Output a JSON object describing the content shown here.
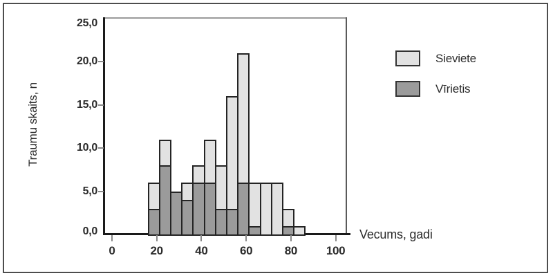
{
  "figure": {
    "background": "#ffffff",
    "border_color": "#4d4d4d"
  },
  "axes": {
    "y_title": "Traumu skaits, n",
    "x_title": "Vecums, gadi"
  },
  "legend": {
    "items": [
      {
        "label": "Sieviete",
        "color": "#e2e2e2"
      },
      {
        "label": "Vīrietis",
        "color": "#9b9b9b"
      }
    ]
  },
  "chart_data": {
    "type": "bar",
    "stacked": true,
    "title": "",
    "xlabel": "Vecums, gadi",
    "ylabel": "Traumu skaits, n",
    "xlim": [
      -4,
      106
    ],
    "ylim": [
      0,
      25
    ],
    "x_ticks": [
      0,
      20,
      40,
      60,
      80,
      100
    ],
    "x_tick_labels": [
      "0",
      "20",
      "40",
      "60",
      "80",
      "100"
    ],
    "y_ticks": [
      0,
      5,
      10,
      15,
      20,
      25
    ],
    "y_tick_labels": [
      "0,0",
      "5,0",
      "10,0",
      "15,0",
      "20,0",
      "25,0"
    ],
    "grid": false,
    "legend_position": "right",
    "bin_width": 5,
    "bin_starts": [
      16,
      21,
      26,
      31,
      36,
      41,
      46,
      51,
      56,
      61,
      66,
      71,
      76,
      81
    ],
    "series": [
      {
        "name": "Sieviete",
        "color": "#e2e2e2",
        "values": [
          3,
          3,
          0,
          2,
          2,
          5,
          5,
          13,
          15,
          5,
          6,
          6,
          2,
          1
        ]
      },
      {
        "name": "Vīrietis",
        "color": "#9b9b9b",
        "values": [
          3,
          8,
          5,
          4,
          6,
          6,
          3,
          3,
          6,
          1,
          0,
          0,
          1,
          0
        ]
      }
    ],
    "stack_order_bottom_to_top": [
      "Vīrietis",
      "Sieviete"
    ],
    "totals": [
      6,
      11,
      5,
      6,
      8,
      11,
      8,
      16,
      21,
      6,
      6,
      6,
      3,
      1
    ]
  }
}
